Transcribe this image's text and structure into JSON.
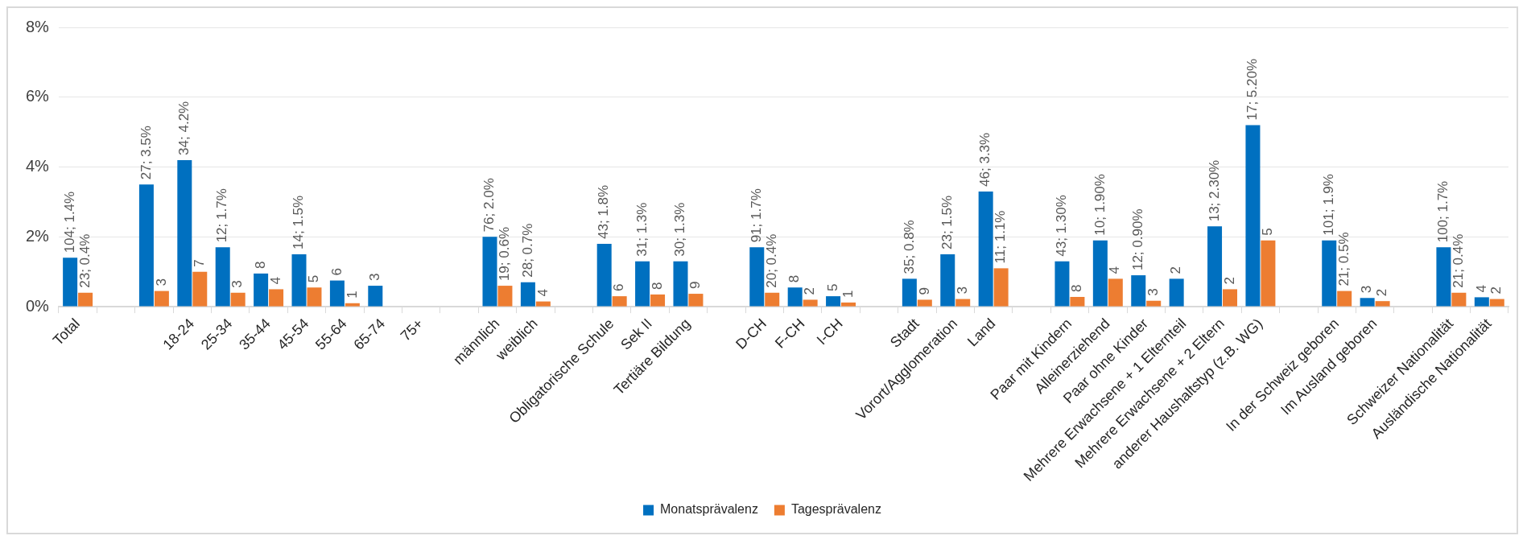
{
  "chart_data": {
    "type": "bar",
    "categories": [
      "Total",
      null,
      null,
      "18-24",
      "25-34",
      "35-44",
      "45-54",
      "55-64",
      "65-74",
      "75+",
      null,
      "männlich",
      "weiblich",
      null,
      "Obligatorische Schule",
      "Sek II",
      "Tertiäre Bildung",
      null,
      "D-CH",
      "F-CH",
      "I-CH",
      null,
      "Stadt",
      "Vorort/Agglomeration",
      "Land",
      null,
      "Paar mit Kindern",
      "Alleinerziehend",
      "Paar ohne Kinder",
      "Mehrere Erwachsene + 1 Elternteil",
      "Mehrere Erwachsene + 2 Eltern",
      "anderer Haushaltstyp (z.B. WG)",
      null,
      "In der Schweiz geboren",
      "Im Ausland geboren",
      null,
      "Schweizer Nationalität",
      "Ausländische Nationalität"
    ],
    "series": [
      {
        "name": "Monatsprävalenz",
        "color": "#0070c0",
        "values": [
          1.4,
          null,
          3.5,
          4.2,
          1.7,
          0.95,
          1.5,
          0.75,
          0.6,
          null,
          null,
          2.0,
          0.7,
          null,
          1.8,
          1.3,
          1.3,
          null,
          1.7,
          0.55,
          0.3,
          null,
          0.8,
          1.5,
          3.3,
          null,
          1.3,
          1.9,
          0.9,
          0.8,
          2.3,
          5.2,
          null,
          1.9,
          0.25,
          null,
          1.7,
          0.27
        ],
        "value_labels": [
          "104; 1.4%",
          null,
          "27; 3.5%",
          "34; 4.2%",
          "12; 1.7%",
          null,
          "14; 1.5%",
          null,
          null,
          null,
          null,
          "76; 2.0%",
          "28; 0.7%",
          null,
          "43; 1.8%",
          "31; 1.3%",
          "30; 1.3%",
          null,
          "91; 1.7%",
          null,
          null,
          null,
          "35; 0.8%",
          "23; 1.5%",
          "46; 3.3%",
          null,
          "43; 1.30%",
          "10; 1.90%",
          "12; 0.90%",
          null,
          "13; 2.30%",
          "17; 5.20%",
          null,
          "101; 1.9%",
          null,
          null,
          "100; 1.7%",
          null
        ]
      },
      {
        "name": "Tagesprävalenz",
        "color": "#ed7d31",
        "values": [
          0.4,
          null,
          0.45,
          1.0,
          0.4,
          0.5,
          0.55,
          0.1,
          null,
          null,
          null,
          0.6,
          0.15,
          null,
          0.3,
          0.35,
          0.37,
          null,
          0.4,
          0.2,
          0.12,
          null,
          0.2,
          0.22,
          1.1,
          null,
          0.28,
          0.8,
          0.17,
          null,
          0.5,
          1.9,
          null,
          0.45,
          0.16,
          null,
          0.4,
          0.22
        ],
        "value_labels": [
          "23; 0.4%",
          null,
          null,
          null,
          null,
          null,
          null,
          null,
          null,
          null,
          null,
          "19; 0.6%",
          null,
          null,
          null,
          null,
          null,
          null,
          "20; 0.4%",
          null,
          null,
          null,
          null,
          null,
          "11; 1.1%",
          null,
          null,
          null,
          null,
          null,
          null,
          null,
          null,
          "21; 0.5%",
          null,
          null,
          "21; 0.4%",
          null
        ]
      }
    ],
    "annotations": [
      {
        "text": "8",
        "x": "35-44",
        "y": 0.95
      },
      {
        "text": "6",
        "x": "55-64",
        "y": 0.75
      },
      {
        "text": "3",
        "x": "65-74",
        "y": 0.6
      },
      {
        "text": "8",
        "x": "F-CH",
        "y": 0.55
      },
      {
        "text": "5",
        "x": "I-CH",
        "y": 0.3
      },
      {
        "text": "2",
        "x": "Mehrere Erwachsene + 1 Elternteil",
        "y": 0.8
      },
      {
        "text": "3",
        "x": "Im Ausland geboren",
        "y": 0.25
      },
      {
        "text": "4",
        "x": "Ausländische Nationalität",
        "y": 0.27
      },
      "3",
      {
        "text": "7",
        "x": "18-24",
        "y": 1.0
      },
      {
        "text": "3",
        "x": "25-34",
        "y": 0.4
      },
      {
        "text": "4",
        "x": "35-44",
        "y": 0.5
      },
      {
        "text": "5",
        "x": "45-54",
        "y": 0.55
      },
      {
        "text": "1",
        "x": "55-64",
        "y": 0.1
      },
      {
        "text": "4",
        "x": "weiblich",
        "y": 0.15
      },
      {
        "text": "6",
        "x": "Obligatorische Schule",
        "y": 0.3
      },
      {
        "text": "8",
        "x": "Sek II",
        "y": 0.35
      },
      {
        "text": "9",
        "x": "Tertiäre Bildung",
        "y": 0.37
      },
      {
        "text": "2",
        "x": "F-CH",
        "y": 0.2
      },
      {
        "text": "1",
        "x": "I-CH",
        "y": 0.12
      },
      {
        "text": "9",
        "x": "Stadt",
        "y": 0.2
      },
      {
        "text": "3",
        "x": "Vorort/Agglomeration",
        "y": 0.22
      },
      {
        "text": "8",
        "x": "Paar mit Kindern",
        "y": 0.28
      },
      {
        "text": "4",
        "x": "Alleinerziehend",
        "y": 0.8
      },
      {
        "text": "3",
        "x": "Paar ohne Kinder",
        "y": 0.17
      },
      {
        "text": "2",
        "x": "Mehrere Erwachsene + 2 Eltern",
        "y": 0.5
      },
      {
        "text": "5",
        "x": "anderer Haushaltstyp (z.B. WG)",
        "y": 1.9
      },
      {
        "text": "2",
        "x": "Im Ausland geboren",
        "y": 0.16
      },
      {
        "text": "2",
        "x": "Ausländische Nationalität",
        "y": 0.22
      }
    ],
    "ylim": [
      0,
      8
    ],
    "yticks": [
      {
        "value": 0,
        "label": "0%"
      },
      {
        "value": 2,
        "label": "2%"
      },
      {
        "value": 4,
        "label": "4%"
      },
      {
        "value": 6,
        "label": "6%"
      },
      {
        "value": 8,
        "label": "8%"
      }
    ],
    "grid": "y",
    "legend": "bottom"
  }
}
